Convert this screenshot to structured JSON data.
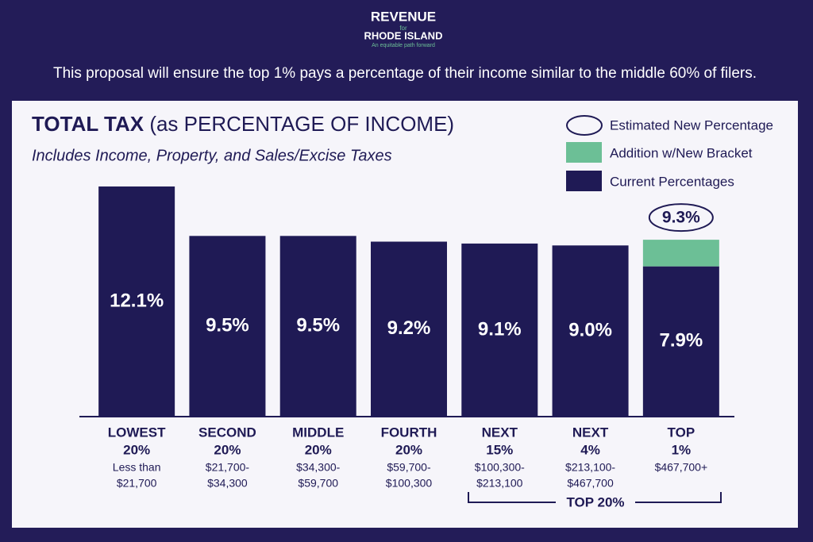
{
  "logo": {
    "line1": "REVENUE",
    "line2": "for",
    "line3": "RHODE ISLAND",
    "tagline": "An equitable path forward"
  },
  "headline": "This proposal will ensure the top 1% pays a percentage of their income similar to the middle 60% of filers.",
  "chart_data": {
    "type": "stacked_bar",
    "title": "TOTAL TAX",
    "title_suffix": "(as PERCENTAGE OF INCOME)",
    "subtitle": "Includes Income, Property, and Sales/Excise Taxes",
    "categories": [
      [
        "LOWEST",
        "20%"
      ],
      [
        "SECOND",
        "20%"
      ],
      [
        "MIDDLE",
        "20%"
      ],
      [
        "FOURTH",
        "20%"
      ],
      [
        "NEXT",
        "15%"
      ],
      [
        "NEXT",
        "4%"
      ],
      [
        "TOP",
        "1%"
      ]
    ],
    "income_ranges": [
      [
        "Less than",
        "$21,700"
      ],
      [
        "$21,700-",
        "$34,300"
      ],
      [
        "$34,300-",
        "$59,700"
      ],
      [
        "$59,700-",
        "$100,300"
      ],
      [
        "$100,300-",
        "$213,100"
      ],
      [
        "$213,100-",
        "$467,700"
      ],
      [
        "$467,700+"
      ]
    ],
    "series": [
      {
        "name": "Current Percentages",
        "color": "#1f1a55",
        "values": [
          12.1,
          9.5,
          9.5,
          9.2,
          9.1,
          9.0,
          7.9
        ],
        "value_labels": [
          "12.1%",
          "9.5%",
          "9.5%",
          "9.2%",
          "9.1%",
          "9.0%",
          "7.9%"
        ]
      },
      {
        "name": "Addition w/New Bracket",
        "color": "#6cbf96",
        "values": [
          null,
          null,
          null,
          null,
          null,
          null,
          1.4
        ]
      }
    ],
    "estimated": {
      "name": "Estimated New Percentage",
      "values": [
        null,
        null,
        null,
        null,
        null,
        null,
        9.3
      ],
      "value_labels": [
        null,
        null,
        null,
        null,
        null,
        null,
        "9.3%"
      ]
    },
    "annotation": "TOP 20%",
    "legend": "top-right"
  }
}
